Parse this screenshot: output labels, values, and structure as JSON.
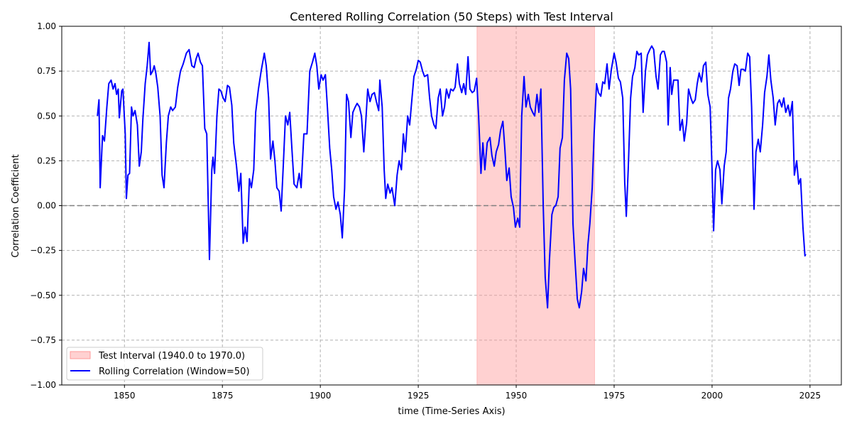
{
  "chart_data": {
    "type": "line",
    "title": "Centered Rolling Correlation (50 Steps) with Test Interval",
    "xlabel": "time (Time-Series Axis)",
    "ylabel": "Correlation Coefficient",
    "xlim": [
      1834,
      2033
    ],
    "ylim": [
      -1,
      1
    ],
    "xticks": [
      1850,
      1875,
      1900,
      1925,
      1950,
      1975,
      2000,
      2025
    ],
    "xtick_labels": [
      "1850",
      "1875",
      "1900",
      "1925",
      "1950",
      "1975",
      "2000",
      "2025"
    ],
    "yticks": [
      -1,
      -0.75,
      -0.5,
      -0.25,
      0,
      0.25,
      0.5,
      0.75,
      1
    ],
    "ytick_labels": [
      "−1.00",
      "−0.75",
      "−0.50",
      "−0.25",
      "0.00",
      "0.25",
      "0.50",
      "0.75",
      "1.00"
    ],
    "grid": true,
    "legend_position": "lower-left",
    "reference_line": {
      "y": 0,
      "color": "#808080"
    },
    "shaded_interval": {
      "start": 1940.0,
      "end": 1970.0,
      "label": "Test Interval (1940.0 to 1970.0)",
      "color": "#ff9999"
    },
    "series": [
      {
        "name": "Rolling Correlation (Window=50)",
        "color": "#0000ff",
        "x": [
          1843.1,
          1843.5,
          1843.8,
          1844.4,
          1844.9,
          1845.5,
          1846,
          1846.6,
          1847.1,
          1847.6,
          1848,
          1848.4,
          1848.7,
          1849.3,
          1849.6,
          1850.2,
          1850.5,
          1850.9,
          1851.3,
          1851.8,
          1852.2,
          1852.7,
          1853.3,
          1853.8,
          1854.3,
          1854.7,
          1855.3,
          1855.8,
          1856.3,
          1856.7,
          1857.2,
          1857.6,
          1858,
          1858.5,
          1859.1,
          1859.6,
          1860.1,
          1860.7,
          1861.2,
          1861.8,
          1862.3,
          1863,
          1863.6,
          1864.3,
          1865,
          1865.8,
          1866.5,
          1867.2,
          1867.8,
          1868.3,
          1868.8,
          1869.4,
          1869.9,
          1870.5,
          1871,
          1871.7,
          1872.3,
          1872.6,
          1873,
          1873.6,
          1874.1,
          1874.6,
          1875.2,
          1875.7,
          1876.3,
          1876.8,
          1877.4,
          1877.9,
          1878.6,
          1879.2,
          1879.7,
          1880.3,
          1880.8,
          1881.3,
          1881.9,
          1882.4,
          1883,
          1883.5,
          1884.2,
          1884.9,
          1885.7,
          1886.2,
          1886.8,
          1887.3,
          1887.9,
          1888.4,
          1888.9,
          1889.5,
          1890,
          1890.6,
          1891.1,
          1891.7,
          1892.2,
          1892.8,
          1893.3,
          1894,
          1894.6,
          1895.1,
          1895.8,
          1896.6,
          1897.3,
          1898,
          1898.6,
          1899.1,
          1899.6,
          1900.2,
          1900.7,
          1901.3,
          1901.8,
          1902.4,
          1902.9,
          1903.4,
          1904,
          1904.5,
          1905.1,
          1905.6,
          1906.2,
          1906.7,
          1907.2,
          1907.8,
          1908.3,
          1908.9,
          1909.4,
          1910,
          1910.5,
          1911.1,
          1911.6,
          1912.1,
          1912.7,
          1913.2,
          1913.8,
          1914.3,
          1914.9,
          1915.2,
          1915.8,
          1916.3,
          1916.7,
          1917.2,
          1917.8,
          1918.3,
          1919,
          1919.6,
          1920.1,
          1920.7,
          1921.2,
          1921.7,
          1922.3,
          1922.8,
          1923.4,
          1923.9,
          1924.5,
          1925,
          1925.5,
          1926.1,
          1926.6,
          1927.4,
          1927.9,
          1928.4,
          1929,
          1929.5,
          1930.1,
          1930.6,
          1931.2,
          1931.7,
          1932.2,
          1932.8,
          1933.3,
          1933.9,
          1934.4,
          1935,
          1935.5,
          1936.1,
          1936.6,
          1937.1,
          1937.7,
          1938.2,
          1938.8,
          1939.3,
          1939.9,
          1940.4,
          1941,
          1941.5,
          1942,
          1942.6,
          1943.3,
          1943.8,
          1944.4,
          1944.9,
          1945.5,
          1946,
          1946.6,
          1947.1,
          1947.6,
          1948.2,
          1948.7,
          1949.3,
          1949.8,
          1950.4,
          1950.9,
          1951.4,
          1952,
          1952.5,
          1953.1,
          1953.6,
          1954.2,
          1954.7,
          1955.3,
          1955.8,
          1956.3,
          1956.9,
          1957.4,
          1958,
          1958.5,
          1959.1,
          1959.6,
          1960.1,
          1960.7,
          1961.2,
          1961.8,
          1962.3,
          1962.9,
          1963.4,
          1963.9,
          1964.5,
          1965,
          1965.6,
          1966.1,
          1966.7,
          1967.2,
          1967.8,
          1968.3,
          1968.8,
          1969.4,
          1969.9,
          1970.5,
          1971,
          1971.6,
          1972.1,
          1972.6,
          1973.2,
          1973.7,
          1974.3,
          1975,
          1975.5,
          1976.1,
          1976.6,
          1977.2,
          1977.7,
          1978.1,
          1978.6,
          1979.2,
          1979.7,
          1980.3,
          1980.8,
          1981.3,
          1981.9,
          1982.4,
          1983,
          1983.5,
          1984.1,
          1984.6,
          1985.1,
          1985.7,
          1986.2,
          1986.8,
          1987.3,
          1987.8,
          1988.4,
          1988.8,
          1989.3,
          1989.7,
          1990.2,
          1990.8,
          1991.3,
          1991.8,
          1992.4,
          1992.9,
          1993.5,
          1994,
          1994.6,
          1995.1,
          1995.7,
          1996.2,
          1996.7,
          1997.3,
          1997.8,
          1998.4,
          1998.9,
          1999.5,
          2000,
          2000.4,
          2000.9,
          2001.4,
          2002,
          2002.5,
          2003.1,
          2003.6,
          2004.2,
          2004.7,
          2005.3,
          2005.8,
          2006.4,
          2006.9,
          2007.4,
          2008,
          2008.5,
          2009.1,
          2009.6,
          2010.1,
          2010.7,
          2011.2,
          2011.8,
          2012.3,
          2012.9,
          2013.4,
          2014,
          2014.5,
          2015,
          2015.6,
          2016.1,
          2016.7,
          2017.2,
          2017.8,
          2018.3,
          2018.8,
          2019.4,
          2019.9,
          2020.5,
          2021,
          2021.6,
          2022.1,
          2022.6,
          2023.2,
          2023.7,
          2023.9
        ],
        "y": [
          0.5,
          0.59,
          0.1,
          0.39,
          0.36,
          0.55,
          0.68,
          0.7,
          0.65,
          0.68,
          0.62,
          0.65,
          0.49,
          0.64,
          0.65,
          0.4,
          0.04,
          0.17,
          0.18,
          0.55,
          0.5,
          0.53,
          0.45,
          0.22,
          0.3,
          0.48,
          0.68,
          0.78,
          0.91,
          0.73,
          0.75,
          0.78,
          0.74,
          0.66,
          0.5,
          0.17,
          0.1,
          0.35,
          0.5,
          0.55,
          0.53,
          0.55,
          0.66,
          0.75,
          0.79,
          0.85,
          0.87,
          0.78,
          0.77,
          0.82,
          0.85,
          0.8,
          0.78,
          0.43,
          0.4,
          -0.3,
          0.2,
          0.27,
          0.18,
          0.5,
          0.65,
          0.64,
          0.6,
          0.58,
          0.67,
          0.66,
          0.56,
          0.35,
          0.22,
          0.08,
          0.18,
          -0.21,
          -0.12,
          -0.2,
          0.15,
          0.1,
          0.2,
          0.52,
          0.65,
          0.75,
          0.85,
          0.78,
          0.6,
          0.26,
          0.36,
          0.25,
          0.1,
          0.08,
          -0.03,
          0.25,
          0.5,
          0.45,
          0.52,
          0.3,
          0.12,
          0.1,
          0.18,
          0.1,
          0.4,
          0.4,
          0.75,
          0.8,
          0.85,
          0.78,
          0.65,
          0.73,
          0.7,
          0.73,
          0.55,
          0.32,
          0.2,
          0.05,
          -0.02,
          0.02,
          -0.05,
          -0.18,
          0.1,
          0.62,
          0.58,
          0.38,
          0.52,
          0.55,
          0.57,
          0.55,
          0.5,
          0.3,
          0.47,
          0.65,
          0.58,
          0.62,
          0.63,
          0.58,
          0.53,
          0.7,
          0.55,
          0.2,
          0.04,
          0.12,
          0.07,
          0.1,
          0.0,
          0.17,
          0.25,
          0.2,
          0.4,
          0.3,
          0.5,
          0.45,
          0.6,
          0.72,
          0.76,
          0.81,
          0.8,
          0.75,
          0.72,
          0.73,
          0.6,
          0.5,
          0.45,
          0.43,
          0.6,
          0.65,
          0.5,
          0.55,
          0.65,
          0.6,
          0.65,
          0.64,
          0.66,
          0.79,
          0.68,
          0.63,
          0.68,
          0.62,
          0.83,
          0.65,
          0.63,
          0.64,
          0.71,
          0.5,
          0.18,
          0.35,
          0.2,
          0.35,
          0.38,
          0.28,
          0.22,
          0.3,
          0.34,
          0.42,
          0.47,
          0.32,
          0.14,
          0.21,
          0.05,
          -0.01,
          -0.12,
          -0.07,
          -0.12,
          0.5,
          0.72,
          0.55,
          0.62,
          0.55,
          0.52,
          0.5,
          0.62,
          0.52,
          0.65,
          0.0,
          -0.4,
          -0.57,
          -0.3,
          -0.05,
          -0.01,
          0.0,
          0.05,
          0.32,
          0.38,
          0.7,
          0.85,
          0.82,
          0.65,
          -0.1,
          -0.3,
          -0.52,
          -0.57,
          -0.48,
          -0.35,
          -0.42,
          -0.22,
          -0.1,
          0.1,
          0.4,
          0.68,
          0.63,
          0.61,
          0.69,
          0.68,
          0.79,
          0.65,
          0.76,
          0.85,
          0.8,
          0.71,
          0.69,
          0.6,
          0.13,
          -0.06,
          0.2,
          0.6,
          0.72,
          0.77,
          0.86,
          0.84,
          0.85,
          0.52,
          0.75,
          0.84,
          0.87,
          0.89,
          0.87,
          0.72,
          0.65,
          0.84,
          0.86,
          0.86,
          0.8,
          0.45,
          0.77,
          0.62,
          0.7,
          0.7,
          0.7,
          0.42,
          0.48,
          0.36,
          0.46,
          0.65,
          0.6,
          0.57,
          0.59,
          0.68,
          0.74,
          0.69,
          0.78,
          0.8,
          0.62,
          0.55,
          0.2,
          -0.14,
          0.2,
          0.25,
          0.2,
          0.01,
          0.22,
          0.3,
          0.6,
          0.65,
          0.75,
          0.79,
          0.78,
          0.67,
          0.76,
          0.76,
          0.75,
          0.85,
          0.83,
          0.55,
          -0.02,
          0.3,
          0.37,
          0.3,
          0.45,
          0.63,
          0.72,
          0.84,
          0.7,
          0.6,
          0.45,
          0.57,
          0.59,
          0.55,
          0.6,
          0.52,
          0.56,
          0.5,
          0.58,
          0.17,
          0.25,
          0.12,
          0.15,
          -0.12,
          -0.28,
          -0.27
        ]
      }
    ]
  }
}
